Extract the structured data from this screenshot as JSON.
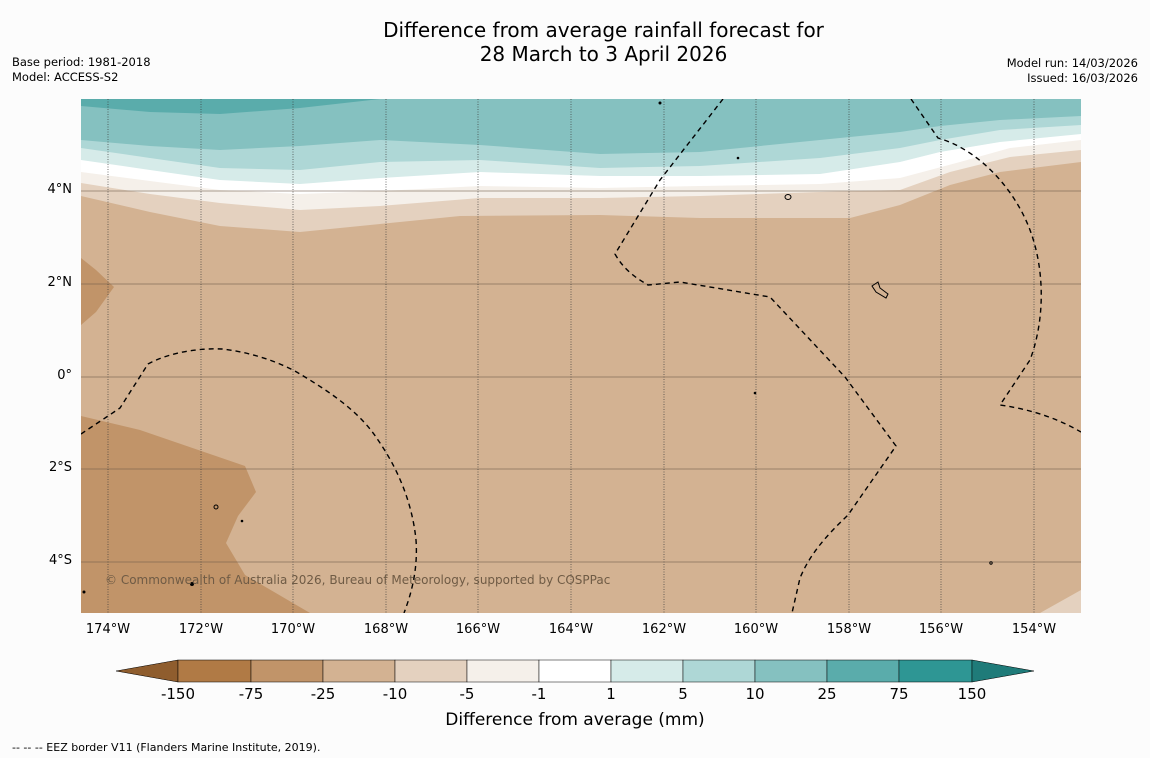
{
  "title": {
    "line1": "Difference from average rainfall forecast for",
    "line2": "28 March to 3 April 2026"
  },
  "meta_left": {
    "base_period": "Base period: 1981-2018",
    "model": "Model: ACCESS-S2"
  },
  "meta_right": {
    "model_run": "Model run: 14/03/2026",
    "issued": "Issued: 16/03/2026"
  },
  "map": {
    "lat_labels": [
      "4°N",
      "2°N",
      "0°",
      "2°S",
      "4°S"
    ],
    "lon_labels": [
      "174°W",
      "172°W",
      "170°W",
      "168°W",
      "166°W",
      "164°W",
      "162°W",
      "160°W",
      "158°W",
      "156°W",
      "154°W"
    ],
    "copyright": "© Commonwealth of Australia 2026, Bureau of Meteorology, supported by COSPPac"
  },
  "colorbar": {
    "tick_labels": [
      "-150",
      "-75",
      "-25",
      "-10",
      "-5",
      "-1",
      "1",
      "5",
      "10",
      "25",
      "75",
      "150"
    ],
    "colors": [
      "#b07a45",
      "#c19469",
      "#d3b292",
      "#e4d1bf",
      "#f5f0ea",
      "#ffffff",
      "#d6ebe9",
      "#aed7d6",
      "#85c1c0",
      "#5aacab",
      "#2e9694"
    ],
    "end_low_color": "#8f5d2e",
    "end_high_color": "#1f7b79",
    "title": "Difference from average (mm)"
  },
  "footer": "--  --  -- EEZ border V11 (Flanders Marine Institute, 2019)."
}
